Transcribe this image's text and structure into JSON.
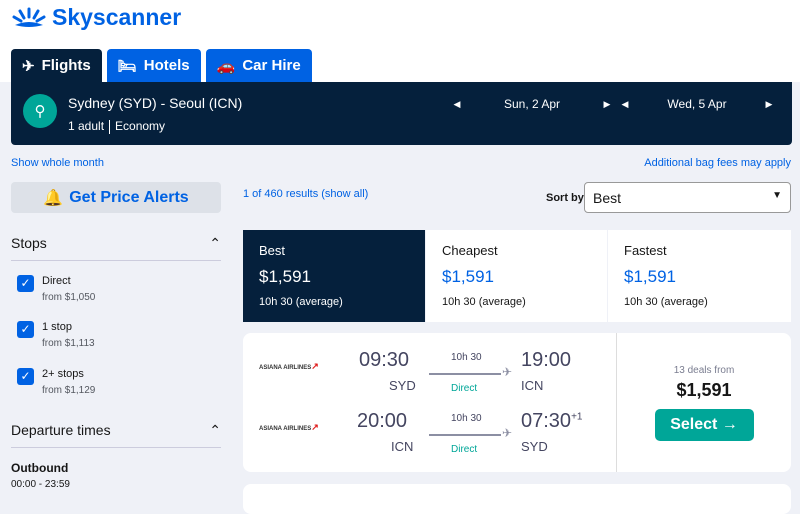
{
  "brand": {
    "name": "Skyscanner",
    "color": "#0062e3"
  },
  "tabs": [
    {
      "label": "Flights",
      "icon": "plane-icon"
    },
    {
      "label": "Hotels",
      "icon": "bed-icon"
    },
    {
      "label": "Car Hire",
      "icon": "car-icon"
    }
  ],
  "search": {
    "route": "Sydney (SYD) - Seoul (ICN)",
    "adults": "1 adult",
    "cabin": "Economy",
    "depart": "Sun, 2 Apr",
    "return": "Wed, 5 Apr"
  },
  "links": {
    "whole_month": "Show whole month",
    "bag_fees": "Additional bag fees may apply"
  },
  "alerts": "Get Price Alerts",
  "filters": {
    "stops_title": "Stops",
    "stops": [
      {
        "label": "Direct",
        "price": "from $1,050",
        "checked": true
      },
      {
        "label": "1 stop",
        "price": "from $1,113",
        "checked": true
      },
      {
        "label": "2+ stops",
        "price": "from $1,129",
        "checked": true
      }
    ],
    "departure_title": "Departure times",
    "outbound": "Outbound",
    "outbound_range": "00:00 - 23:59"
  },
  "results": {
    "count": "1 of 460 results (show all)",
    "sort_label": "Sort by",
    "sort_value": "Best"
  },
  "sort_tabs": [
    {
      "title": "Best",
      "price": "$1,591",
      "duration": "10h 30 (average)"
    },
    {
      "title": "Cheapest",
      "price": "$1,591",
      "duration": "10h 30 (average)"
    },
    {
      "title": "Fastest",
      "price": "$1,591",
      "duration": "10h 30 (average)"
    }
  ],
  "card": {
    "legs": [
      {
        "airline": "ASIANA AIRLINES",
        "dep": "09:30",
        "from": "SYD",
        "duration": "10h 30",
        "stops": "Direct",
        "arr": "19:00",
        "to": "ICN",
        "offset": ""
      },
      {
        "airline": "ASIANA AIRLINES",
        "dep": "20:00",
        "from": "ICN",
        "duration": "10h 30",
        "stops": "Direct",
        "arr": "07:30",
        "to": "SYD",
        "offset": "+1"
      }
    ],
    "deals": "13 deals from",
    "price": "$1,591",
    "select": "Select →"
  }
}
